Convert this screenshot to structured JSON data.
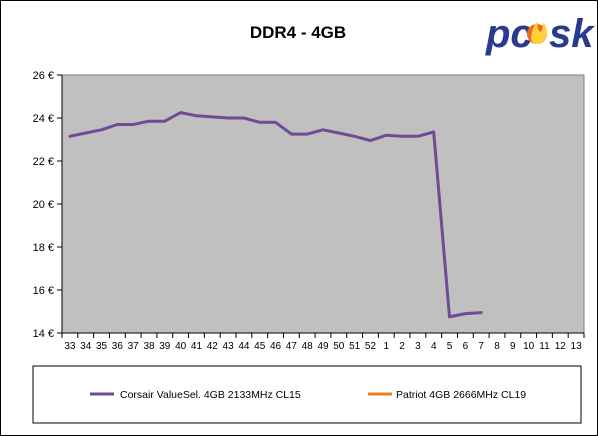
{
  "chart_data": {
    "type": "line",
    "title": "DDR4 - 4GB",
    "categories": [
      "33",
      "34",
      "35",
      "36",
      "37",
      "38",
      "39",
      "40",
      "41",
      "42",
      "43",
      "44",
      "45",
      "46",
      "47",
      "48",
      "49",
      "50",
      "51",
      "52",
      "1",
      "2",
      "3",
      "4",
      "5",
      "6",
      "7",
      "8",
      "9",
      "10",
      "11",
      "12",
      "13"
    ],
    "series": [
      {
        "name": "Corsair ValueSel. 4GB 2133MHz CL15",
        "color": "#6e4b94",
        "values": [
          23.15,
          23.3,
          23.45,
          23.7,
          23.7,
          23.85,
          23.85,
          24.25,
          24.1,
          24.05,
          24.0,
          24.0,
          23.8,
          23.8,
          23.25,
          23.25,
          23.45,
          23.3,
          23.15,
          22.95,
          23.2,
          23.15,
          23.15,
          23.35,
          14.75,
          14.9,
          14.95,
          null,
          null,
          null,
          null,
          null,
          null
        ]
      },
      {
        "name": "Patriot 4GB 2666MHz CL19",
        "color": "#e8821e",
        "values": [
          null,
          null,
          null,
          null,
          null,
          null,
          null,
          null,
          null,
          null,
          null,
          null,
          null,
          null,
          null,
          null,
          null,
          null,
          null,
          null,
          null,
          null,
          null,
          null,
          null,
          null,
          null,
          null,
          null,
          null,
          null,
          null,
          null
        ]
      }
    ],
    "y_ticks": [
      "14 €",
      "16 €",
      "18 €",
      "20 €",
      "22 €",
      "24 €",
      "26 €"
    ],
    "ylim": [
      14,
      26
    ],
    "y_step": 2,
    "grid": false,
    "plot_background": "#c0c0c0",
    "legend_position": "bottom"
  },
  "logo": {
    "text": "pc sk",
    "colors": [
      "#2a3b8f",
      "#f26a1b",
      "#ffd23a"
    ],
    "icon": "flame-icon"
  }
}
